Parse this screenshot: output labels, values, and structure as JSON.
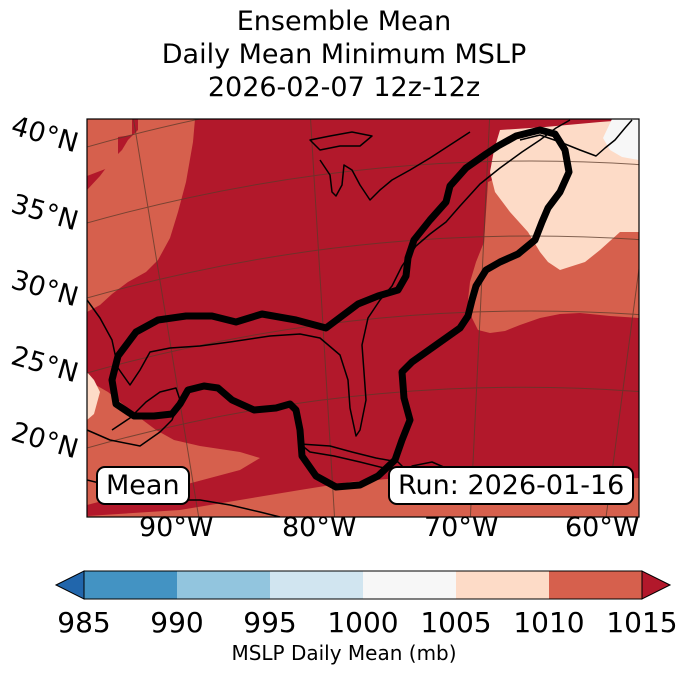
{
  "title": {
    "line1": "Ensemble Mean",
    "line2": "Daily Mean Minimum MSLP",
    "line3": "2026-02-07 12z-12z"
  },
  "map": {
    "lat_labels": [
      "40°N",
      "35°N",
      "30°N",
      "25°N",
      "20°N"
    ],
    "lon_labels": [
      "90°W",
      "80°W",
      "70°W",
      "60°W"
    ],
    "mean_badge": "Mean",
    "run_badge": "Run: 2026-01-16",
    "colors": {
      "lt_985": "#2166ac",
      "c985_990": "#4393c3",
      "c990_995": "#92c5de",
      "c995_1000": "#d1e5f0",
      "c1000_1005": "#f7f7f7",
      "c1005_1010": "#fddbc7",
      "c1010_1015": "#d6604d",
      "gt_1015": "#b2182b",
      "land": "#000000"
    }
  },
  "colorbar": {
    "ticks": [
      "985",
      "990",
      "995",
      "1000",
      "1005",
      "1010",
      "1015"
    ],
    "colors": [
      "#4393c3",
      "#92c5de",
      "#d1e5f0",
      "#f7f7f7",
      "#fddbc7",
      "#d6604d"
    ],
    "under_color": "#2166ac",
    "over_color": "#b2182b",
    "label": "MSLP Daily Mean (mb)"
  }
}
